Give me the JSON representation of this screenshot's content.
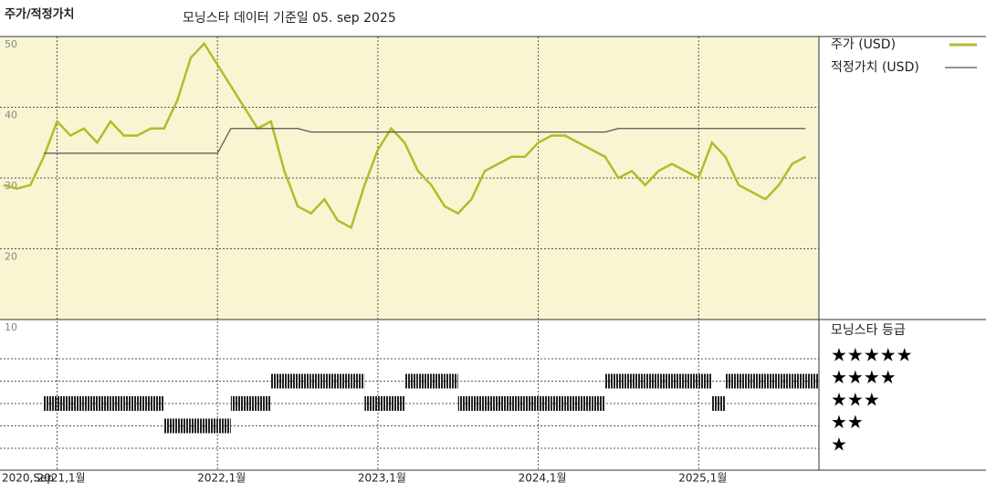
{
  "header": {
    "title": "주가/적정가치",
    "subtitle": "모닝스타 데이터 기준일 05. sep 2025"
  },
  "chart_data": {
    "type": "line",
    "x": [
      "2020-09",
      "2020-10",
      "2020-11",
      "2020-12",
      "2021-01",
      "2021-02",
      "2021-03",
      "2021-04",
      "2021-05",
      "2021-06",
      "2021-07",
      "2021-08",
      "2021-09",
      "2021-10",
      "2021-11",
      "2021-12",
      "2022-01",
      "2022-02",
      "2022-03",
      "2022-04",
      "2022-05",
      "2022-06",
      "2022-07",
      "2022-08",
      "2022-09",
      "2022-10",
      "2022-11",
      "2022-12",
      "2023-01",
      "2023-02",
      "2023-03",
      "2023-04",
      "2023-05",
      "2023-06",
      "2023-07",
      "2023-08",
      "2023-09",
      "2023-10",
      "2023-11",
      "2023-12",
      "2024-01",
      "2024-02",
      "2024-03",
      "2024-04",
      "2024-05",
      "2024-06",
      "2024-07",
      "2024-08",
      "2024-09",
      "2024-10",
      "2024-11",
      "2024-12",
      "2025-01",
      "2025-02",
      "2025-03",
      "2025-04",
      "2025-05",
      "2025-06",
      "2025-07",
      "2025-08",
      "2025-09"
    ],
    "series": [
      {
        "name": "주가 (USD)",
        "color": "#b3bb2a",
        "values": [
          29,
          28.5,
          29,
          33,
          38,
          36,
          37,
          35,
          38,
          36,
          36,
          37,
          37,
          41,
          47,
          49,
          46,
          43,
          40,
          37,
          38,
          31,
          26,
          25,
          27,
          24,
          23,
          29,
          34,
          37,
          35,
          31,
          29,
          26,
          25,
          27,
          31,
          32,
          33,
          33,
          35,
          36,
          36,
          35,
          34,
          33,
          30,
          31,
          29,
          31,
          32,
          31,
          30,
          35,
          33,
          29,
          28,
          27,
          29,
          32,
          33
        ]
      },
      {
        "name": "적정가치 (USD)",
        "color": "#555555",
        "values": [
          null,
          null,
          null,
          33.5,
          33.5,
          33.5,
          33.5,
          33.5,
          33.5,
          33.5,
          33.5,
          33.5,
          33.5,
          33.5,
          33.5,
          33.5,
          33.5,
          37,
          37,
          37,
          37,
          37,
          37,
          36.5,
          36.5,
          36.5,
          36.5,
          36.5,
          36.5,
          36.5,
          36.5,
          36.5,
          36.5,
          36.5,
          36.5,
          36.5,
          36.5,
          36.5,
          36.5,
          36.5,
          36.5,
          36.5,
          36.5,
          36.5,
          36.5,
          36.5,
          37,
          37,
          37,
          37,
          37,
          37,
          37,
          37,
          37,
          37,
          37,
          37,
          37,
          37,
          37
        ]
      }
    ],
    "xlim": [
      "2020-09",
      "2025-10"
    ],
    "xticks": [
      {
        "value": "2020-09",
        "label": "2020,Sep"
      },
      {
        "value": "2021-01",
        "label": "2021,1월"
      },
      {
        "value": "2022-01",
        "label": "2022,1월"
      },
      {
        "value": "2023-01",
        "label": "2023,1월"
      },
      {
        "value": "2024-01",
        "label": "2024,1월"
      },
      {
        "value": "2025-01",
        "label": "2025,1월"
      }
    ],
    "ylim": [
      10,
      50
    ],
    "yticks": [
      10,
      20,
      30,
      40,
      50
    ],
    "grid": true,
    "rating_title": "모닝스타 등급",
    "ratings": [
      null,
      null,
      null,
      3,
      3,
      3,
      3,
      3,
      3,
      3,
      3,
      3,
      2,
      2,
      2,
      2,
      2,
      3,
      3,
      3,
      4,
      4,
      4,
      4,
      4,
      4,
      4,
      3,
      3,
      3,
      4,
      4,
      4,
      4,
      3,
      3,
      3,
      3,
      3,
      3,
      3,
      3,
      3,
      3,
      3,
      4,
      4,
      4,
      4,
      4,
      4,
      4,
      4,
      3,
      4,
      4,
      4,
      4,
      4,
      4,
      4
    ],
    "rating_levels": [
      {
        "value": 5,
        "label": "★★★★★"
      },
      {
        "value": 4,
        "label": "★★★★"
      },
      {
        "value": 3,
        "label": "★★★"
      },
      {
        "value": 2,
        "label": "★★"
      },
      {
        "value": 1,
        "label": "★"
      }
    ],
    "rating_color": "#222222",
    "background": "#f8f5d2"
  }
}
